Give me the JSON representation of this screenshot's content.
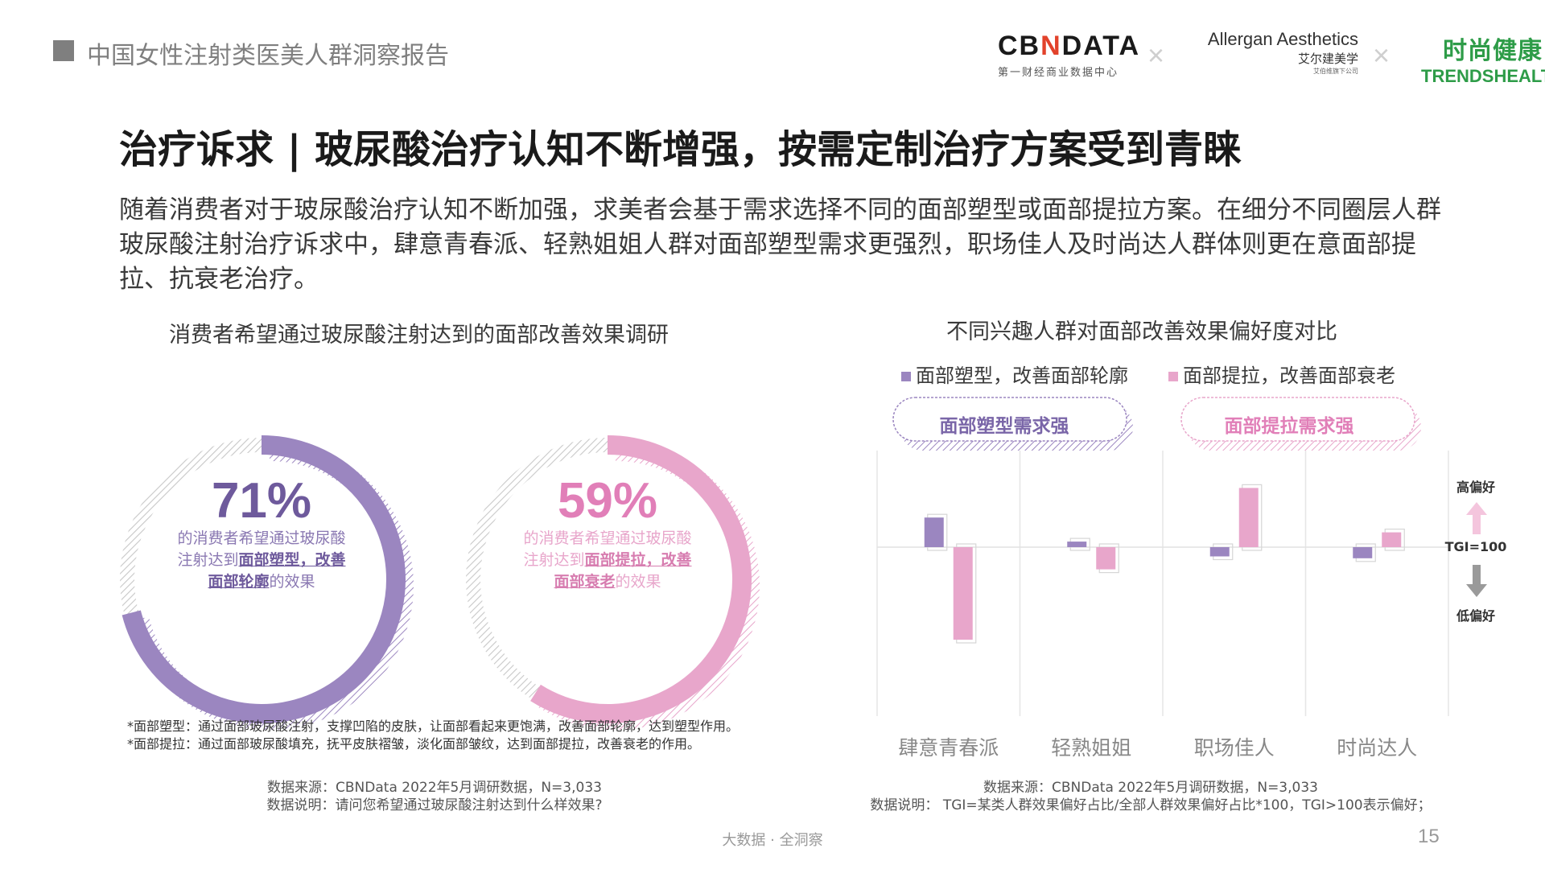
{
  "header": {
    "report_title": "中国女性注射类医美人群洞察报告",
    "logo_cbn_prefix": "CB",
    "logo_cbn_n": "N",
    "logo_cbn_suffix": "DATA",
    "logo_cbn_sub": "第一财经商业数据中心",
    "separator": "×",
    "logo_allergan_en": "Allergan Aesthetics",
    "logo_allergan_cn": "艾尔建美学",
    "logo_allergan_sub": "艾伯维旗下公司",
    "logo_trend_cn": "时尚健康",
    "logo_trend_en": "TRENDSHEALTH"
  },
  "main_title": "治疗诉求 | 玻尿酸治疗认知不断增强，按需定制治疗方案受到青睐",
  "intro": "随着消费者对于玻尿酸治疗认知不断加强，求美者会基于需求选择不同的面部塑型或面部提拉方案。在细分不同圈层人群玻尿酸注射治疗诉求中，肆意青春派、轻熟姐姐人群对面部塑型需求更强烈，职场佳人及时尚达人群体则更在意面部提拉、抗衰老治疗。",
  "left_panel": {
    "title": "消费者希望通过玻尿酸注射达到的面部改善效果调研",
    "donut1": {
      "pct": "71%",
      "line1": "的消费者希望通过玻尿酸",
      "line2_pre": "注射达到",
      "line2_bold": "面部塑型，改善",
      "line3_bold": "面部轮廓",
      "line3_post": "的效果"
    },
    "donut2": {
      "pct": "59%",
      "line1": "的消费者希望通过玻尿酸",
      "line2_pre": "注射达到",
      "line2_bold": "面部提拉，改善",
      "line3_bold": "面部衰老",
      "line3_post": "的效果"
    },
    "note1": "*面部塑型：通过面部玻尿酸注射，支撑凹陷的皮肤，让面部看起来更饱满，改善面部轮廓，达到塑型作用。",
    "note2": "*面部提拉：通过面部玻尿酸填充，抚平皮肤褶皱，淡化面部皱纹，达到面部提拉，改善衰老的作用。",
    "source": "数据来源：CBNData 2022年5月调研数据，N=3,033",
    "explain": "数据说明：请问您希望通过玻尿酸注射达到什么样效果?"
  },
  "right_panel": {
    "title": "不同兴趣人群对面部改善效果偏好度对比",
    "pill_left": "面部塑型需求强",
    "pill_right": "面部提拉需求强",
    "high_label": "高偏好",
    "tgi_label": "TGI=100",
    "low_label": "低偏好",
    "source": "数据来源：CBNData 2022年5月调研数据，N=3,033",
    "explain": "数据说明： TGI=某类人群效果偏好占比/全部人群效果偏好占比*100，TGI>100表示偏好；"
  },
  "colors": {
    "purple": "#9b86c0",
    "purple_dark": "#6e5a9c",
    "pink": "#e8a6cb",
    "pink_dark": "#d77db0"
  },
  "chart_data": [
    {
      "type": "pie",
      "subtype": "donut",
      "title": "消费者希望通过玻尿酸注射达到的面部改善效果调研",
      "charts": [
        {
          "label": "面部塑型，改善面部轮廓",
          "value": 71
        },
        {
          "label": "面部提拉，改善面部衰老",
          "value": 59
        }
      ]
    },
    {
      "type": "bar",
      "title": "不同兴趣人群对面部改善效果偏好度对比",
      "baseline": 100,
      "categories": [
        "肆意青春派",
        "轻熟姐姐",
        "职场佳人",
        "时尚达人"
      ],
      "series": [
        {
          "name": "面部塑型，改善面部轮廓",
          "values": [
            116,
            103,
            95,
            94
          ]
        },
        {
          "name": "面部提拉，改善面部衰老",
          "values": [
            50,
            88,
            132,
            108
          ]
        }
      ]
    }
  ],
  "footer": {
    "center": "大数据 · 全洞察",
    "page": "15"
  }
}
